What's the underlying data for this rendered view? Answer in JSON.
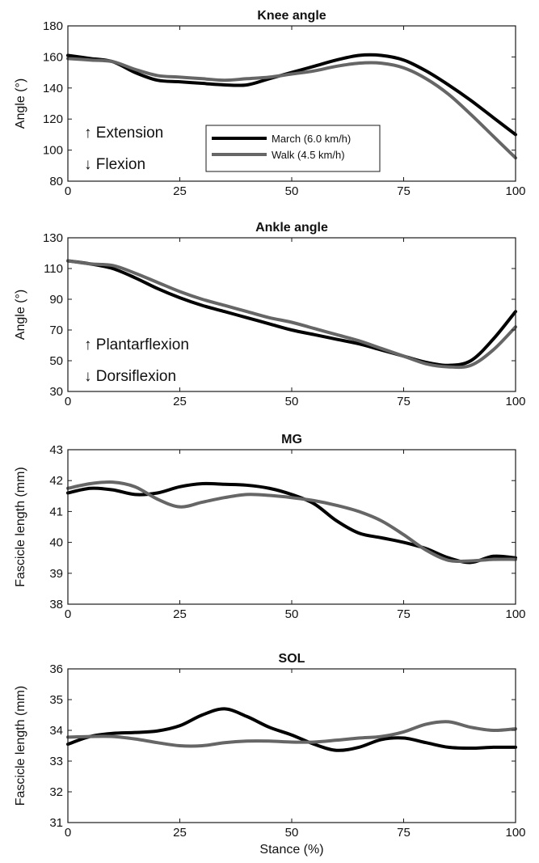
{
  "chart_data": [
    {
      "type": "line",
      "title": "Knee angle",
      "xlabel": "",
      "ylabel": "Angle (°)",
      "xlim": [
        0,
        100
      ],
      "ylim": [
        80,
        180
      ],
      "xticks": [
        0,
        25,
        50,
        75,
        100
      ],
      "yticks": [
        80,
        100,
        120,
        140,
        160,
        180
      ],
      "grid": false,
      "legend": "inside-center-bottom",
      "annotations": [
        "↑ Extension",
        "↓ Flexion"
      ],
      "x": [
        0,
        5,
        10,
        15,
        20,
        25,
        30,
        35,
        40,
        45,
        50,
        55,
        60,
        65,
        70,
        75,
        80,
        85,
        90,
        95,
        100
      ],
      "series": [
        {
          "name": "March (6.0 km/h)",
          "color": "#000000",
          "values": [
            161,
            159,
            157,
            150,
            145,
            144,
            143,
            142,
            142,
            146,
            150,
            154,
            158,
            161,
            161,
            158,
            151,
            142,
            132,
            121,
            110
          ]
        },
        {
          "name": "Walk (4.5 km/h)",
          "color": "#666666",
          "values": [
            159,
            158,
            157,
            152,
            148,
            147,
            146,
            145,
            146,
            147,
            149,
            151,
            154,
            156,
            156,
            153,
            146,
            136,
            123,
            109,
            95
          ]
        }
      ]
    },
    {
      "type": "line",
      "title": "Ankle angle",
      "xlabel": "",
      "ylabel": "Angle (°)",
      "xlim": [
        0,
        100
      ],
      "ylim": [
        30,
        130
      ],
      "xticks": [
        0,
        25,
        50,
        75,
        100
      ],
      "yticks": [
        30,
        50,
        70,
        90,
        110,
        130
      ],
      "grid": false,
      "annotations": [
        "↑ Plantarflexion",
        "↓ Dorsiflexion"
      ],
      "x": [
        0,
        5,
        10,
        15,
        20,
        25,
        30,
        35,
        40,
        45,
        50,
        55,
        60,
        65,
        70,
        75,
        80,
        85,
        90,
        95,
        100
      ],
      "series": [
        {
          "name": "March (6.0 km/h)",
          "color": "#000000",
          "values": [
            115,
            113,
            110,
            104,
            97,
            91,
            86,
            82,
            78,
            74,
            70,
            67,
            64,
            61,
            57,
            53,
            49,
            47,
            50,
            64,
            82
          ]
        },
        {
          "name": "Walk (4.5 km/h)",
          "color": "#666666",
          "values": [
            115,
            113,
            112,
            107,
            101,
            95,
            90,
            86,
            82,
            78,
            75,
            71,
            67,
            63,
            58,
            53,
            48,
            46,
            47,
            57,
            72
          ]
        }
      ]
    },
    {
      "type": "line",
      "title": "MG",
      "xlabel": "",
      "ylabel": "Fascicle length (mm)",
      "xlim": [
        0,
        100
      ],
      "ylim": [
        38,
        43
      ],
      "xticks": [
        0,
        25,
        50,
        75,
        100
      ],
      "yticks": [
        38,
        39,
        40,
        41,
        42,
        43
      ],
      "grid": false,
      "x": [
        0,
        5,
        10,
        15,
        20,
        25,
        30,
        35,
        40,
        45,
        50,
        55,
        60,
        65,
        70,
        75,
        80,
        85,
        90,
        95,
        100
      ],
      "series": [
        {
          "name": "March (6.0 km/h)",
          "color": "#000000",
          "values": [
            41.6,
            41.75,
            41.7,
            41.55,
            41.6,
            41.8,
            41.9,
            41.88,
            41.85,
            41.75,
            41.55,
            41.25,
            40.7,
            40.3,
            40.15,
            40.0,
            39.8,
            39.5,
            39.35,
            39.55,
            39.5
          ]
        },
        {
          "name": "Walk (4.5 km/h)",
          "color": "#666666",
          "values": [
            41.75,
            41.9,
            41.95,
            41.8,
            41.4,
            41.15,
            41.3,
            41.45,
            41.55,
            41.52,
            41.45,
            41.35,
            41.2,
            41.0,
            40.7,
            40.25,
            39.75,
            39.42,
            39.4,
            39.45,
            39.45
          ]
        }
      ]
    },
    {
      "type": "line",
      "title": "SOL",
      "xlabel": "Stance (%)",
      "ylabel": "Fascicle length (mm)",
      "xlim": [
        0,
        100
      ],
      "ylim": [
        31,
        36
      ],
      "xticks": [
        0,
        25,
        50,
        75,
        100
      ],
      "yticks": [
        31,
        32,
        33,
        34,
        35,
        36
      ],
      "grid": false,
      "x": [
        0,
        5,
        10,
        15,
        20,
        25,
        30,
        35,
        40,
        45,
        50,
        55,
        60,
        65,
        70,
        75,
        80,
        85,
        90,
        95,
        100
      ],
      "series": [
        {
          "name": "March (6.0 km/h)",
          "color": "#000000",
          "values": [
            33.55,
            33.8,
            33.9,
            33.93,
            33.98,
            34.15,
            34.5,
            34.7,
            34.45,
            34.1,
            33.85,
            33.55,
            33.35,
            33.45,
            33.7,
            33.75,
            33.6,
            33.45,
            33.42,
            33.45,
            33.45
          ]
        },
        {
          "name": "Walk (4.5 km/h)",
          "color": "#666666",
          "values": [
            33.78,
            33.8,
            33.8,
            33.72,
            33.6,
            33.5,
            33.5,
            33.6,
            33.65,
            33.65,
            33.62,
            33.62,
            33.68,
            33.75,
            33.8,
            33.95,
            34.2,
            34.28,
            34.1,
            34.0,
            34.05
          ]
        }
      ]
    }
  ]
}
